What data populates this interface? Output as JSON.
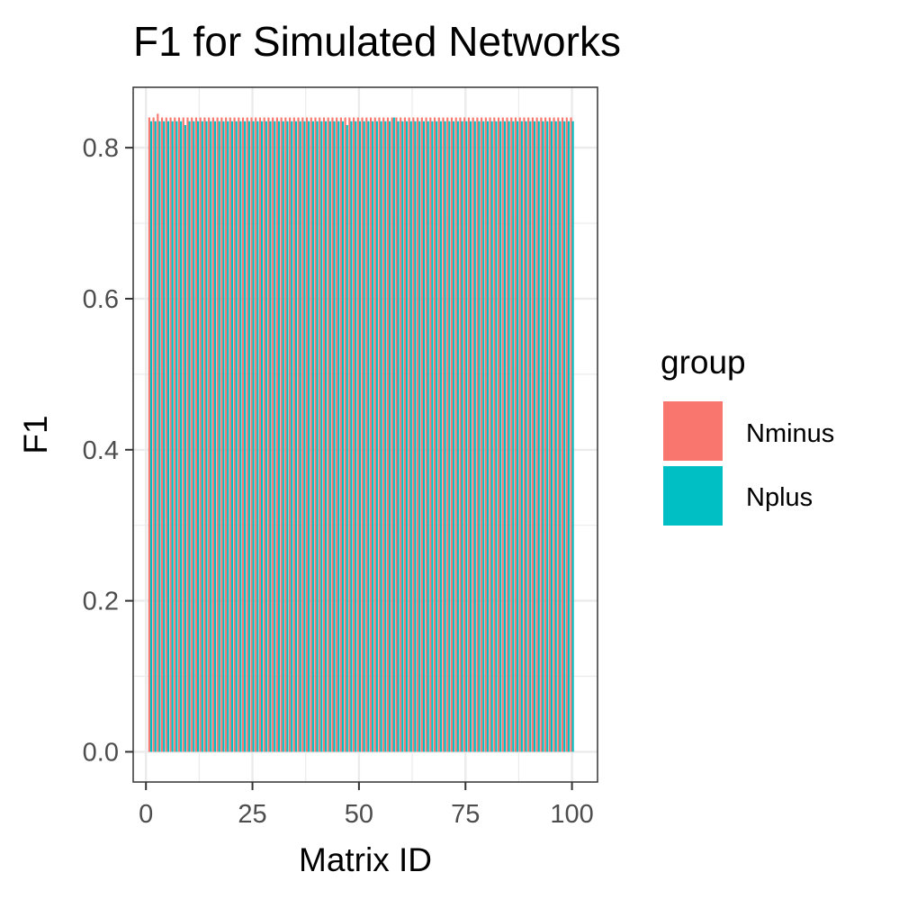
{
  "chart_data": {
    "type": "bar",
    "title": "F1 for Simulated Networks",
    "xlabel": "Matrix ID",
    "ylabel": "F1",
    "xlim": [
      -3,
      106
    ],
    "ylim": [
      -0.04,
      0.88
    ],
    "x_ticks": [
      0,
      25,
      50,
      75,
      100
    ],
    "x_tick_labels": [
      "0",
      "25",
      "50",
      "75",
      "100"
    ],
    "y_ticks": [
      0.0,
      0.2,
      0.4,
      0.6,
      0.8
    ],
    "y_tick_labels": [
      "0.0",
      "0.2",
      "0.4",
      "0.6",
      "0.8"
    ],
    "grid": true,
    "legend": {
      "title": "group",
      "position": "right"
    },
    "x": [
      1,
      2,
      3,
      4,
      5,
      6,
      7,
      8,
      9,
      10,
      11,
      12,
      13,
      14,
      15,
      16,
      17,
      18,
      19,
      20,
      21,
      22,
      23,
      24,
      25,
      26,
      27,
      28,
      29,
      30,
      31,
      32,
      33,
      34,
      35,
      36,
      37,
      38,
      39,
      40,
      41,
      42,
      43,
      44,
      45,
      46,
      47,
      48,
      49,
      50,
      51,
      52,
      53,
      54,
      55,
      56,
      57,
      58,
      59,
      60,
      61,
      62,
      63,
      64,
      65,
      66,
      67,
      68,
      69,
      70,
      71,
      72,
      73,
      74,
      75,
      76,
      77,
      78,
      79,
      80,
      81,
      82,
      83,
      84,
      85,
      86,
      87,
      88,
      89,
      90,
      91,
      92,
      93,
      94,
      95,
      96,
      97,
      98,
      99,
      100
    ],
    "series": [
      {
        "name": "Nminus",
        "color": "#F8766D",
        "values": [
          0.84,
          0.84,
          0.845,
          0.84,
          0.84,
          0.84,
          0.84,
          0.84,
          0.84,
          0.84,
          0.84,
          0.84,
          0.84,
          0.84,
          0.84,
          0.84,
          0.84,
          0.84,
          0.84,
          0.84,
          0.84,
          0.84,
          0.84,
          0.84,
          0.84,
          0.84,
          0.84,
          0.84,
          0.84,
          0.84,
          0.84,
          0.84,
          0.84,
          0.84,
          0.84,
          0.84,
          0.84,
          0.84,
          0.84,
          0.84,
          0.84,
          0.84,
          0.84,
          0.84,
          0.84,
          0.84,
          0.84,
          0.84,
          0.84,
          0.84,
          0.84,
          0.84,
          0.84,
          0.84,
          0.84,
          0.84,
          0.84,
          0.84,
          0.84,
          0.84,
          0.84,
          0.84,
          0.84,
          0.84,
          0.84,
          0.84,
          0.84,
          0.84,
          0.84,
          0.84,
          0.84,
          0.84,
          0.84,
          0.84,
          0.84,
          0.84,
          0.84,
          0.84,
          0.84,
          0.84,
          0.84,
          0.84,
          0.84,
          0.84,
          0.84,
          0.84,
          0.84,
          0.84,
          0.84,
          0.84,
          0.84,
          0.84,
          0.84,
          0.84,
          0.84,
          0.84,
          0.84,
          0.84,
          0.84,
          0.84
        ]
      },
      {
        "name": "Nplus",
        "color": "#00BFC4",
        "values": [
          0.835,
          0.835,
          0.835,
          0.835,
          0.835,
          0.835,
          0.835,
          0.835,
          0.83,
          0.835,
          0.835,
          0.835,
          0.835,
          0.835,
          0.835,
          0.835,
          0.835,
          0.835,
          0.835,
          0.835,
          0.835,
          0.835,
          0.835,
          0.835,
          0.835,
          0.835,
          0.835,
          0.835,
          0.835,
          0.835,
          0.835,
          0.835,
          0.835,
          0.835,
          0.835,
          0.835,
          0.835,
          0.835,
          0.835,
          0.835,
          0.835,
          0.835,
          0.835,
          0.835,
          0.835,
          0.835,
          0.83,
          0.835,
          0.835,
          0.835,
          0.835,
          0.835,
          0.835,
          0.835,
          0.835,
          0.835,
          0.835,
          0.84,
          0.835,
          0.835,
          0.835,
          0.835,
          0.835,
          0.835,
          0.835,
          0.835,
          0.835,
          0.835,
          0.835,
          0.835,
          0.835,
          0.835,
          0.835,
          0.835,
          0.835,
          0.835,
          0.835,
          0.835,
          0.835,
          0.835,
          0.835,
          0.835,
          0.835,
          0.835,
          0.835,
          0.835,
          0.835,
          0.835,
          0.835,
          0.835,
          0.835,
          0.835,
          0.835,
          0.835,
          0.835,
          0.835,
          0.835,
          0.835,
          0.835,
          0.835
        ]
      }
    ]
  }
}
